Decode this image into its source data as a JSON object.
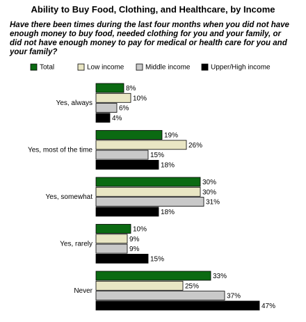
{
  "chart_data": {
    "type": "bar",
    "orientation": "horizontal",
    "title": "Ability to Buy Food, Clothing, and Healthcare, by Income",
    "subtitle": "Have there been times during the last four months when you did not have enough money to buy food, needed clothing for you and your family, or did not have enough money to pay for medical or health care for you and your family?",
    "categories": [
      "Yes, always",
      "Yes, most of the time",
      "Yes, somewhat",
      "Yes, rarely",
      "Never"
    ],
    "series": [
      {
        "name": "Total",
        "color": "#0b6a12",
        "values": [
          8,
          19,
          30,
          10,
          33
        ],
        "value_labels": [
          "8%",
          "19%",
          "30%",
          "10%",
          "33%"
        ]
      },
      {
        "name": "Low income",
        "color": "#e9e6c4",
        "values": [
          10,
          26,
          30,
          9,
          25
        ],
        "value_labels": [
          "10%",
          "26%",
          "30%",
          "9%",
          "25%"
        ]
      },
      {
        "name": "Middle income",
        "color": "#c9c9c9",
        "values": [
          6,
          15,
          31,
          9,
          37
        ],
        "value_labels": [
          "6%",
          "15%",
          "31%",
          "9%",
          "37%"
        ]
      },
      {
        "name": "Upper/High income",
        "color": "#000000",
        "values": [
          4,
          18,
          18,
          15,
          47
        ],
        "value_labels": [
          "4%",
          "18%",
          "18%",
          "15%",
          "47%"
        ]
      }
    ]
  }
}
